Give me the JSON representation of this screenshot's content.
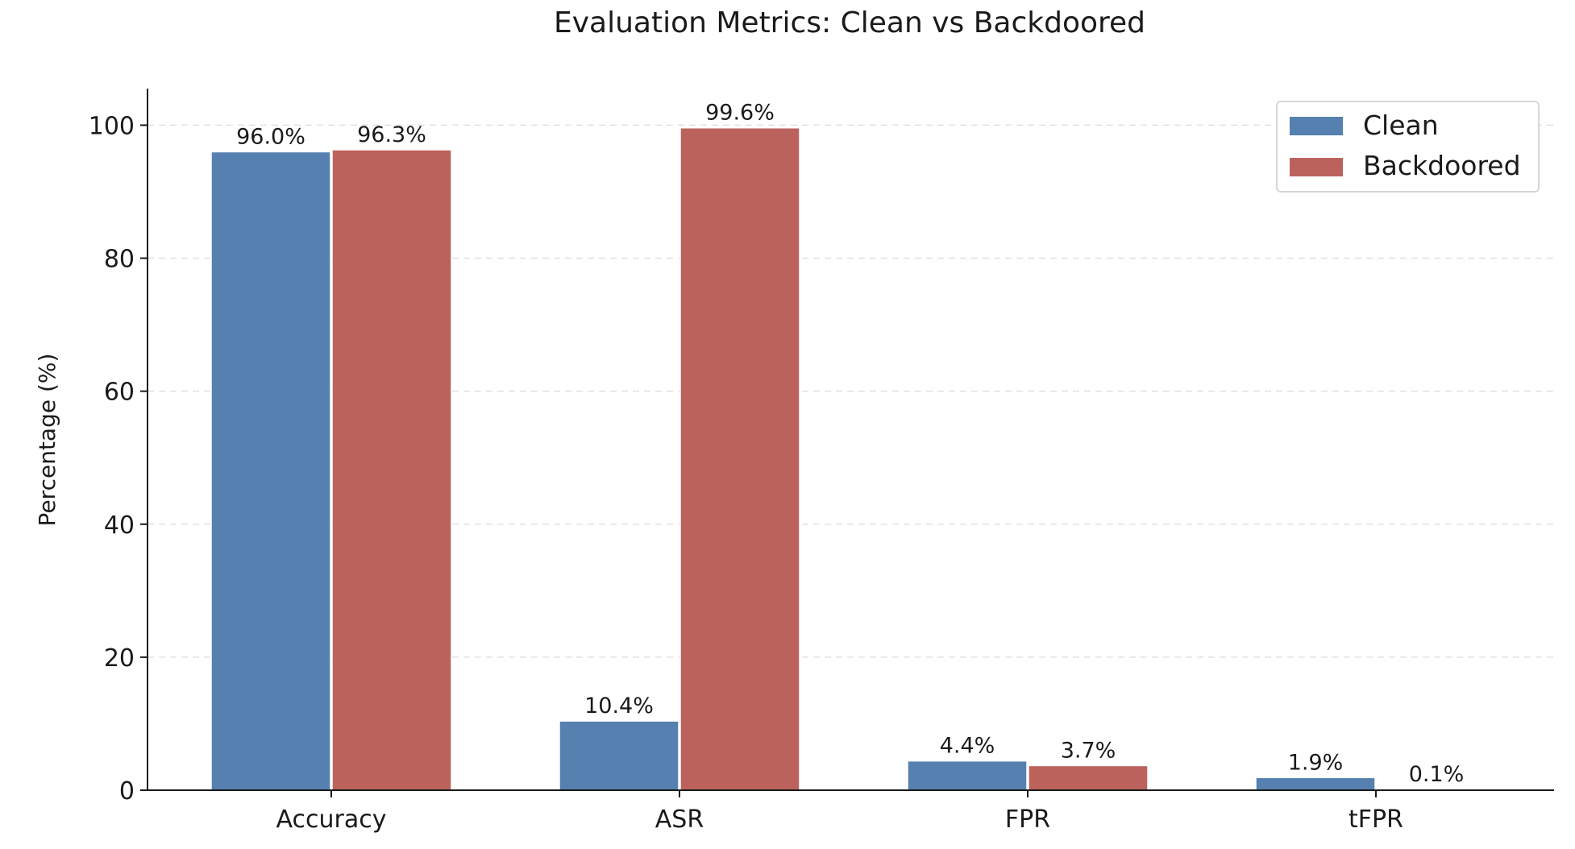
{
  "chart_data": {
    "type": "bar",
    "title": "Evaluation Metrics: Clean vs Backdoored",
    "xlabel": "",
    "ylabel": "Percentage (%)",
    "categories": [
      "Accuracy",
      "ASR",
      "FPR",
      "tFPR"
    ],
    "series": [
      {
        "name": "Clean",
        "color": "#5580b0",
        "values": [
          96.0,
          10.4,
          4.4,
          1.9
        ],
        "labels": [
          "96.0%",
          "10.4%",
          "4.4%",
          "1.9%"
        ]
      },
      {
        "name": "Backdoored",
        "color": "#bc625d",
        "values": [
          96.3,
          99.6,
          3.7,
          0.1
        ],
        "labels": [
          "96.3%",
          "99.6%",
          "3.7%",
          "0.1%"
        ]
      }
    ],
    "ylim": [
      0,
      105.5
    ],
    "yticks": [
      0,
      20,
      40,
      60,
      80,
      100
    ],
    "grid": "y, dashed",
    "legend": "top-right"
  }
}
